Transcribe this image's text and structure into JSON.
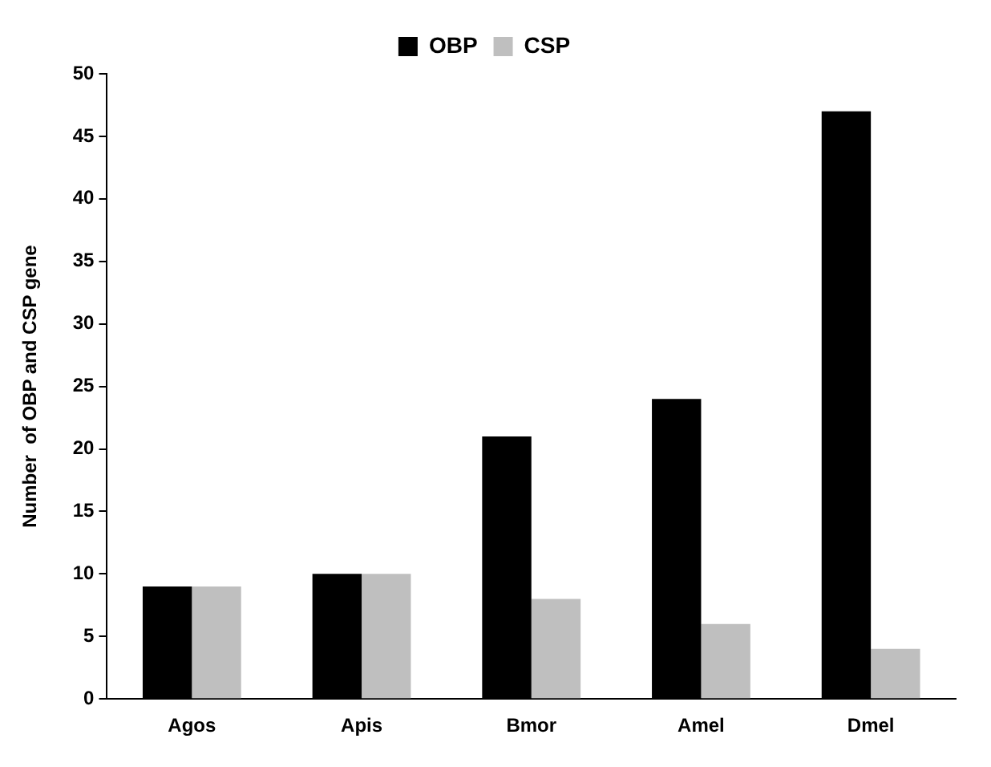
{
  "chart_data": {
    "type": "bar",
    "ylabel": "Number  of OBP and CSP gene",
    "categories": [
      "Agos",
      "Apis",
      "Bmor",
      "Amel",
      "Dmel"
    ],
    "series": [
      {
        "name": "OBP",
        "color": "#000000",
        "values": [
          9,
          10,
          21,
          24,
          47
        ]
      },
      {
        "name": "CSP",
        "color": "#bfbfbf",
        "values": [
          9,
          10,
          8,
          6,
          4
        ]
      }
    ],
    "ylim": [
      0,
      50
    ],
    "yticks": [
      0,
      5,
      10,
      15,
      20,
      25,
      30,
      35,
      40,
      45,
      50
    ],
    "grid": false,
    "legend": "top"
  }
}
